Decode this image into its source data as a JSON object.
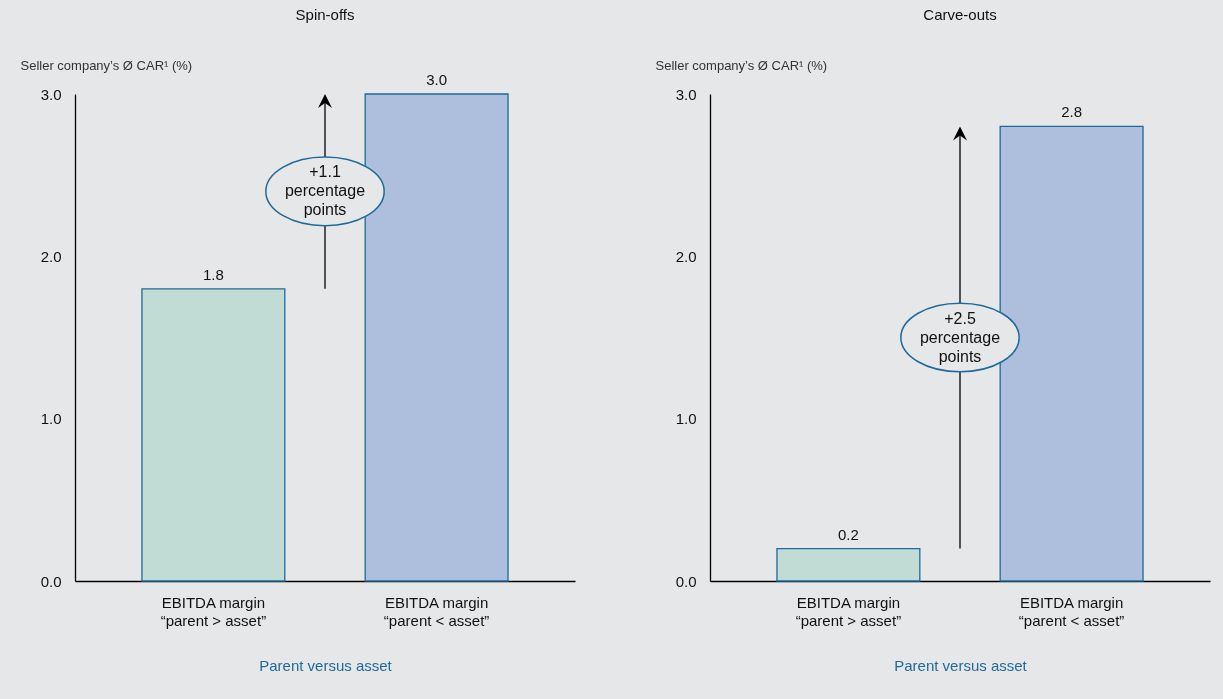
{
  "chart_data": [
    {
      "type": "bar",
      "title": "Spin-offs",
      "ylabel": "Seller company’s Ø CAR¹ (%)",
      "xlabel": "Parent versus asset",
      "categories": [
        "EBITDA margin\n“parent > asset”",
        "EBITDA margin\n“parent < asset”"
      ],
      "values": [
        1.8,
        3.0
      ],
      "value_labels": [
        "1.8",
        "3.0"
      ],
      "colors": [
        "#c0dcd5",
        "#adbfdc"
      ],
      "ylim": [
        0,
        3
      ],
      "yticks": [
        {
          "value": 0,
          "label": "0.0"
        },
        {
          "value": 1,
          "label": "1.0"
        },
        {
          "value": 2,
          "label": "2.0"
        },
        {
          "value": 3,
          "label": "3.0"
        }
      ],
      "grid": false,
      "annotations": [
        "+1.1 percentage points"
      ]
    },
    {
      "type": "bar",
      "title": "Carve-outs",
      "ylabel": "Seller company’s Ø CAR¹ (%)",
      "xlabel": "Parent versus asset",
      "categories": [
        "EBITDA margin\n“parent > asset”",
        "EBITDA margin\n“parent < asset”"
      ],
      "values": [
        0.2,
        2.8
      ],
      "value_labels": [
        "0.2",
        "2.8"
      ],
      "colors": [
        "#c0dcd5",
        "#adbfdc"
      ],
      "ylim": [
        0,
        3
      ],
      "yticks": [
        {
          "value": 0,
          "label": "0.0"
        },
        {
          "value": 1,
          "label": "1.0"
        },
        {
          "value": 2,
          "label": "2.0"
        },
        {
          "value": 3,
          "label": "3.0"
        }
      ],
      "grid": false,
      "annotations": [
        "+2.5 percentage points"
      ]
    }
  ]
}
